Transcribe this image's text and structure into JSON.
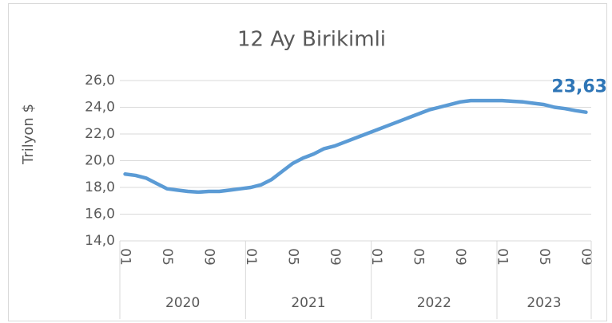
{
  "chart_data": {
    "type": "line",
    "title": "12 Ay Birikimli",
    "y_label": "Trilyon $",
    "categories": [
      "01",
      null,
      null,
      null,
      "05",
      null,
      null,
      null,
      "09",
      null,
      null,
      null,
      "01",
      null,
      null,
      null,
      "05",
      null,
      null,
      null,
      "09",
      null,
      null,
      null,
      "01",
      null,
      null,
      null,
      "05",
      null,
      null,
      null,
      "09",
      null,
      null,
      null,
      "01",
      null,
      null,
      null,
      "05",
      null,
      null,
      null,
      "09"
    ],
    "category_groups": [
      {
        "label": "2020",
        "size": 12
      },
      {
        "label": "2021",
        "size": 12
      },
      {
        "label": "2022",
        "size": 12
      },
      {
        "label": "2023",
        "size": 9
      }
    ],
    "series": [
      {
        "name": "12 Ay Birikimli",
        "color": "#5b9bd5",
        "values": [
          19.0,
          18.9,
          18.7,
          18.3,
          17.9,
          17.8,
          17.7,
          17.65,
          17.7,
          17.7,
          17.8,
          17.9,
          18.0,
          18.2,
          18.6,
          19.2,
          19.8,
          20.2,
          20.5,
          20.9,
          21.1,
          21.4,
          21.7,
          22.0,
          22.3,
          22.6,
          22.9,
          23.2,
          23.5,
          23.8,
          24.0,
          24.2,
          24.4,
          24.5,
          24.5,
          24.5,
          24.5,
          24.45,
          24.4,
          24.3,
          24.2,
          24.0,
          23.9,
          23.75,
          23.63
        ],
        "value_labels": {
          "44": "23,63"
        },
        "label_color": "#2e75b6"
      }
    ],
    "ylim": [
      14,
      26
    ],
    "yticks": [
      {
        "value": 14,
        "label": "14,0"
      },
      {
        "value": 16,
        "label": "16,0"
      },
      {
        "value": 18,
        "label": "18,0"
      },
      {
        "value": 20,
        "label": "20,0"
      },
      {
        "value": 22,
        "label": "22,0"
      },
      {
        "value": 24,
        "label": "24,0"
      },
      {
        "value": 26,
        "label": "26,0"
      }
    ],
    "grid": true
  }
}
